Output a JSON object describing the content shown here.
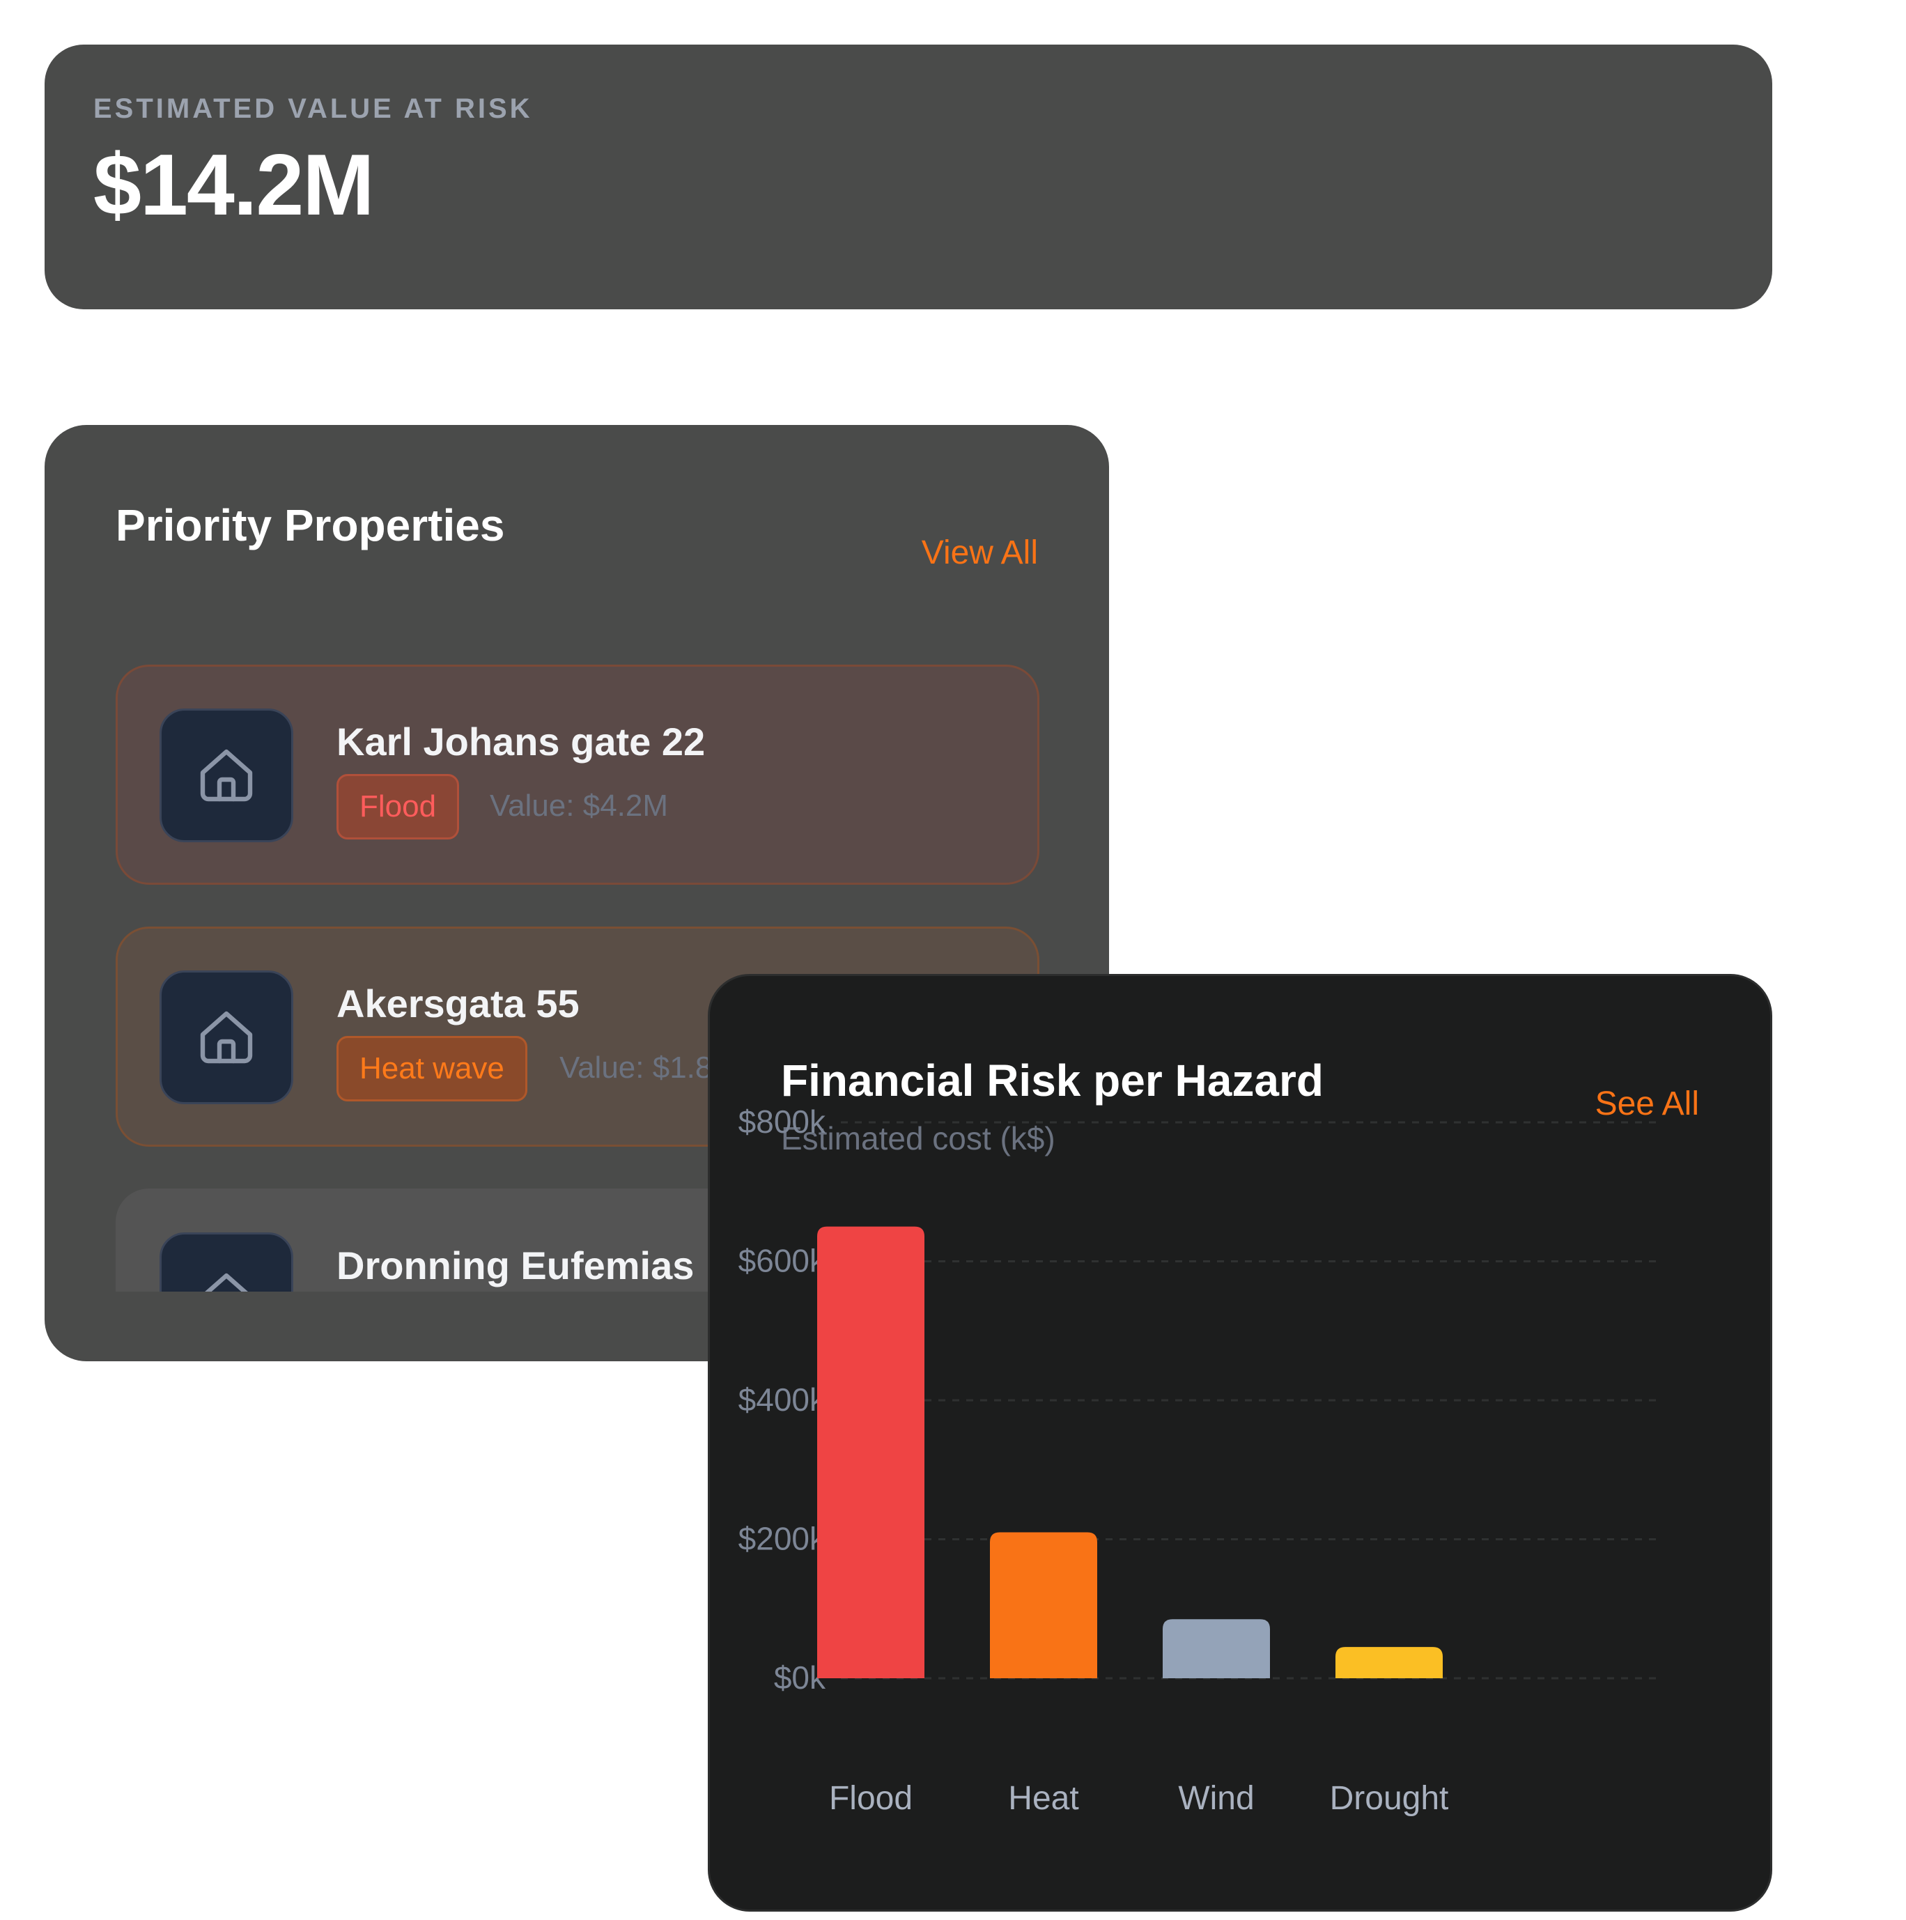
{
  "summary": {
    "label": "ESTIMATED VALUE AT RISK",
    "value": "$14.2M"
  },
  "priority": {
    "title": "Priority Properties",
    "view_all": "View All",
    "items": [
      {
        "name": "Karl Johans gate 22",
        "hazard": "Flood",
        "value": "Value: $4.2M"
      },
      {
        "name": "Akersgata 55",
        "hazard": "Heat wave",
        "value": "Value: $1.8"
      },
      {
        "name": "Dronning Eufemias"
      }
    ]
  },
  "financial": {
    "title": "Financial Risk per Hazard",
    "subtitle": "Estimated cost (k$)",
    "see_all": "See All"
  },
  "chart_data": {
    "type": "bar",
    "title": "Financial Risk per Hazard",
    "subtitle": "Estimated cost (k$)",
    "categories": [
      "Flood",
      "Heat",
      "Wind",
      "Drought"
    ],
    "values": [
      650,
      210,
      85,
      45
    ],
    "colors": [
      "#ef4444",
      "#f97316",
      "#94a3b8",
      "#fbbf24"
    ],
    "yticks": [
      0,
      200,
      400,
      600,
      800
    ],
    "ytick_labels": [
      "$0k",
      "$200k",
      "$400k",
      "$600k",
      "$800k"
    ],
    "ylim": [
      0,
      800
    ],
    "grid": true,
    "legend": "none"
  },
  "colors": {
    "accent": "#f97316",
    "card_bg": "#4a4b4a",
    "chart_bg": "#1c1d1d",
    "flood": "#ef4444",
    "heat": "#f97316"
  },
  "icons": {
    "property": "house-icon"
  }
}
